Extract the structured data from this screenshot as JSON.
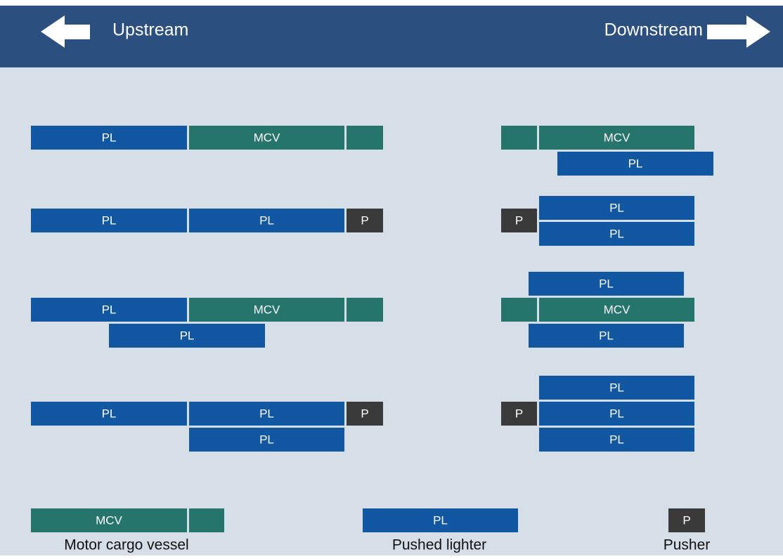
{
  "header": {
    "upstream": "Upstream",
    "downstream": "Downstream"
  },
  "blocks": [
    "PL",
    "MCV",
    "PL",
    "PL",
    "P",
    "PL",
    "MCV",
    "PL",
    "PL",
    "PL",
    "P",
    "PL",
    "MCV",
    "PL",
    "P",
    "PL",
    "PL",
    "PL",
    "MCV",
    "PL",
    "PL",
    "P",
    "PL",
    "PL"
  ],
  "legend": [
    {
      "label": "MCV",
      "caption": "Motor cargo vessel"
    },
    {
      "label": "PL",
      "caption": "Pushed lighter"
    },
    {
      "label": "P",
      "caption": "Pusher"
    }
  ]
}
